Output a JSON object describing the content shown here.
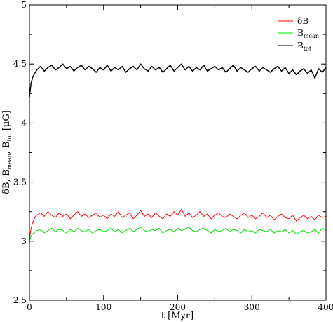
{
  "chart_data": {
    "type": "line",
    "title": "",
    "xlabel": "t [Myr]",
    "ylabel": {
      "prefix": "δB, B",
      "sub1": "mean",
      "mid": ", B",
      "sub2": "tot",
      "suffix": " [μG]"
    },
    "xlim": [
      0,
      400
    ],
    "ylim": [
      2.5,
      5
    ],
    "xticks": [
      0,
      100,
      200,
      300,
      400
    ],
    "xtick_labels": [
      "0",
      "100",
      "200",
      "300",
      "400"
    ],
    "yticks": [
      2.5,
      3,
      3.5,
      4,
      4.5,
      5
    ],
    "ytick_labels": [
      "2.5",
      "3",
      "3.5",
      "4",
      "4.5",
      "5"
    ],
    "grid": false,
    "legend_position": "top-right",
    "series": [
      {
        "name": "δB",
        "legend_main": "δB",
        "legend_sub": "",
        "color": "#ff0000",
        "x": [
          0,
          2,
          4,
          6,
          8,
          10,
          15,
          20,
          25,
          30,
          35,
          40,
          45,
          50,
          55,
          60,
          65,
          70,
          75,
          80,
          85,
          90,
          95,
          100,
          105,
          110,
          115,
          120,
          125,
          130,
          135,
          140,
          145,
          150,
          155,
          160,
          165,
          170,
          175,
          180,
          185,
          190,
          195,
          200,
          205,
          210,
          215,
          220,
          225,
          230,
          235,
          240,
          245,
          250,
          255,
          260,
          265,
          270,
          275,
          280,
          285,
          290,
          295,
          300,
          305,
          310,
          315,
          320,
          325,
          330,
          335,
          340,
          345,
          350,
          355,
          360,
          365,
          370,
          375,
          380,
          385,
          390,
          395,
          400
        ],
        "y": [
          3.02,
          3.1,
          3.15,
          3.18,
          3.21,
          3.22,
          3.24,
          3.21,
          3.25,
          3.22,
          3.2,
          3.24,
          3.21,
          3.23,
          3.19,
          3.22,
          3.25,
          3.21,
          3.23,
          3.2,
          3.22,
          3.24,
          3.2,
          3.22,
          3.19,
          3.23,
          3.21,
          3.25,
          3.2,
          3.22,
          3.24,
          3.19,
          3.22,
          3.26,
          3.21,
          3.23,
          3.2,
          3.24,
          3.21,
          3.19,
          3.23,
          3.21,
          3.25,
          3.22,
          3.27,
          3.21,
          3.24,
          3.2,
          3.22,
          3.25,
          3.21,
          3.23,
          3.19,
          3.22,
          3.24,
          3.21,
          3.2,
          3.23,
          3.21,
          3.19,
          3.22,
          3.24,
          3.2,
          3.22,
          3.19,
          3.21,
          3.24,
          3.2,
          3.22,
          3.18,
          3.21,
          3.23,
          3.2,
          3.19,
          3.22,
          3.17,
          3.2,
          3.22,
          3.19,
          3.21,
          3.18,
          3.22,
          3.2,
          3.21
        ]
      },
      {
        "name": "Bmean",
        "legend_main": "B",
        "legend_sub": "mean",
        "color": "#00e000",
        "x": [
          0,
          2,
          4,
          6,
          8,
          10,
          15,
          20,
          25,
          30,
          35,
          40,
          45,
          50,
          55,
          60,
          65,
          70,
          75,
          80,
          85,
          90,
          95,
          100,
          105,
          110,
          115,
          120,
          125,
          130,
          135,
          140,
          145,
          150,
          155,
          160,
          165,
          170,
          175,
          180,
          185,
          190,
          195,
          200,
          205,
          210,
          215,
          220,
          225,
          230,
          235,
          240,
          245,
          250,
          255,
          260,
          265,
          270,
          275,
          280,
          285,
          290,
          295,
          300,
          305,
          310,
          315,
          320,
          325,
          330,
          335,
          340,
          345,
          350,
          355,
          360,
          365,
          370,
          375,
          380,
          385,
          390,
          395,
          400
        ],
        "y": [
          3.0,
          3.04,
          3.06,
          3.07,
          3.08,
          3.09,
          3.1,
          3.07,
          3.09,
          3.11,
          3.08,
          3.1,
          3.09,
          3.07,
          3.1,
          3.08,
          3.11,
          3.09,
          3.08,
          3.1,
          3.07,
          3.09,
          3.1,
          3.08,
          3.09,
          3.11,
          3.08,
          3.1,
          3.07,
          3.09,
          3.11,
          3.08,
          3.1,
          3.12,
          3.09,
          3.08,
          3.1,
          3.09,
          3.11,
          3.07,
          3.09,
          3.1,
          3.08,
          3.11,
          3.09,
          3.1,
          3.12,
          3.09,
          3.08,
          3.1,
          3.11,
          3.09,
          3.07,
          3.1,
          3.08,
          3.09,
          3.11,
          3.08,
          3.1,
          3.09,
          3.07,
          3.1,
          3.08,
          3.09,
          3.07,
          3.1,
          3.09,
          3.08,
          3.1,
          3.07,
          3.09,
          3.08,
          3.1,
          3.07,
          3.09,
          3.06,
          3.08,
          3.09,
          3.07,
          3.08,
          3.1,
          3.07,
          3.11,
          3.09
        ]
      },
      {
        "name": "Btot",
        "legend_main": "B",
        "legend_sub": "tot",
        "color": "#000000",
        "x": [
          0,
          2,
          4,
          6,
          8,
          10,
          15,
          20,
          25,
          30,
          35,
          40,
          45,
          50,
          55,
          60,
          65,
          70,
          75,
          80,
          85,
          90,
          95,
          100,
          105,
          110,
          115,
          120,
          125,
          130,
          135,
          140,
          145,
          150,
          155,
          160,
          165,
          170,
          175,
          180,
          185,
          190,
          195,
          200,
          205,
          210,
          215,
          220,
          225,
          230,
          235,
          240,
          245,
          250,
          255,
          260,
          265,
          270,
          275,
          280,
          285,
          290,
          295,
          300,
          305,
          310,
          315,
          320,
          325,
          330,
          335,
          340,
          345,
          350,
          355,
          360,
          365,
          370,
          375,
          380,
          385,
          390,
          395,
          400
        ],
        "y": [
          4.22,
          4.33,
          4.38,
          4.41,
          4.43,
          4.45,
          4.48,
          4.44,
          4.47,
          4.49,
          4.45,
          4.47,
          4.5,
          4.46,
          4.48,
          4.44,
          4.47,
          4.49,
          4.45,
          4.48,
          4.46,
          4.43,
          4.47,
          4.45,
          4.49,
          4.44,
          4.47,
          4.45,
          4.48,
          4.43,
          4.46,
          4.48,
          4.45,
          4.5,
          4.46,
          4.44,
          4.48,
          4.45,
          4.47,
          4.43,
          4.46,
          4.49,
          4.44,
          4.47,
          4.5,
          4.45,
          4.48,
          4.44,
          4.47,
          4.45,
          4.49,
          4.44,
          4.46,
          4.48,
          4.45,
          4.47,
          4.43,
          4.46,
          4.49,
          4.44,
          4.47,
          4.45,
          4.43,
          4.46,
          4.48,
          4.44,
          4.47,
          4.45,
          4.43,
          4.46,
          4.48,
          4.44,
          4.47,
          4.42,
          4.45,
          4.41,
          4.44,
          4.46,
          4.42,
          4.45,
          4.38,
          4.46,
          4.43,
          4.47
        ]
      }
    ]
  }
}
